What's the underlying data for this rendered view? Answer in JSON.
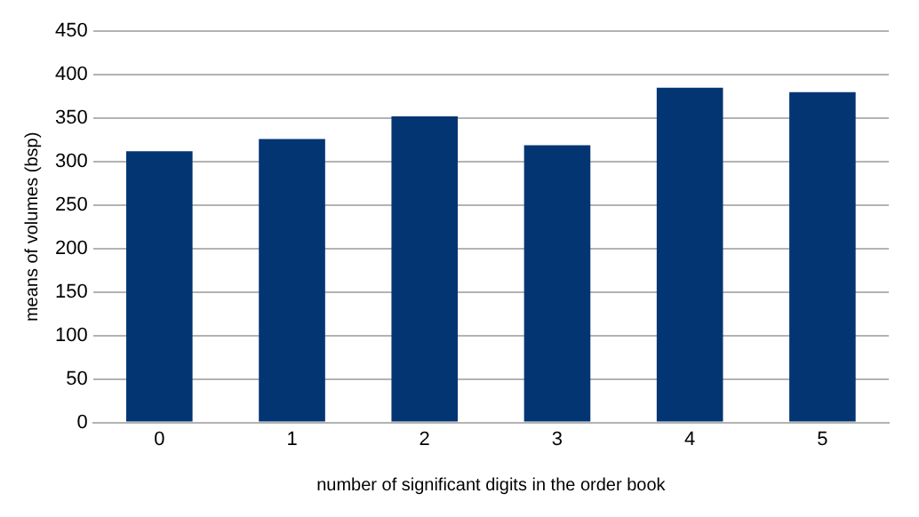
{
  "chart_data": {
    "type": "bar",
    "xlabel": "number of significant digits in the order book",
    "ylabel": "means of volumes (bsp)",
    "categories": [
      "0",
      "1",
      "2",
      "3",
      "4",
      "5"
    ],
    "values": [
      312,
      326,
      352,
      319,
      385,
      380
    ],
    "color": "#043573",
    "ylim": [
      0,
      450
    ],
    "yticks": [
      0,
      50,
      100,
      150,
      200,
      250,
      300,
      350,
      400,
      450
    ],
    "grid": "y",
    "legend": false
  }
}
